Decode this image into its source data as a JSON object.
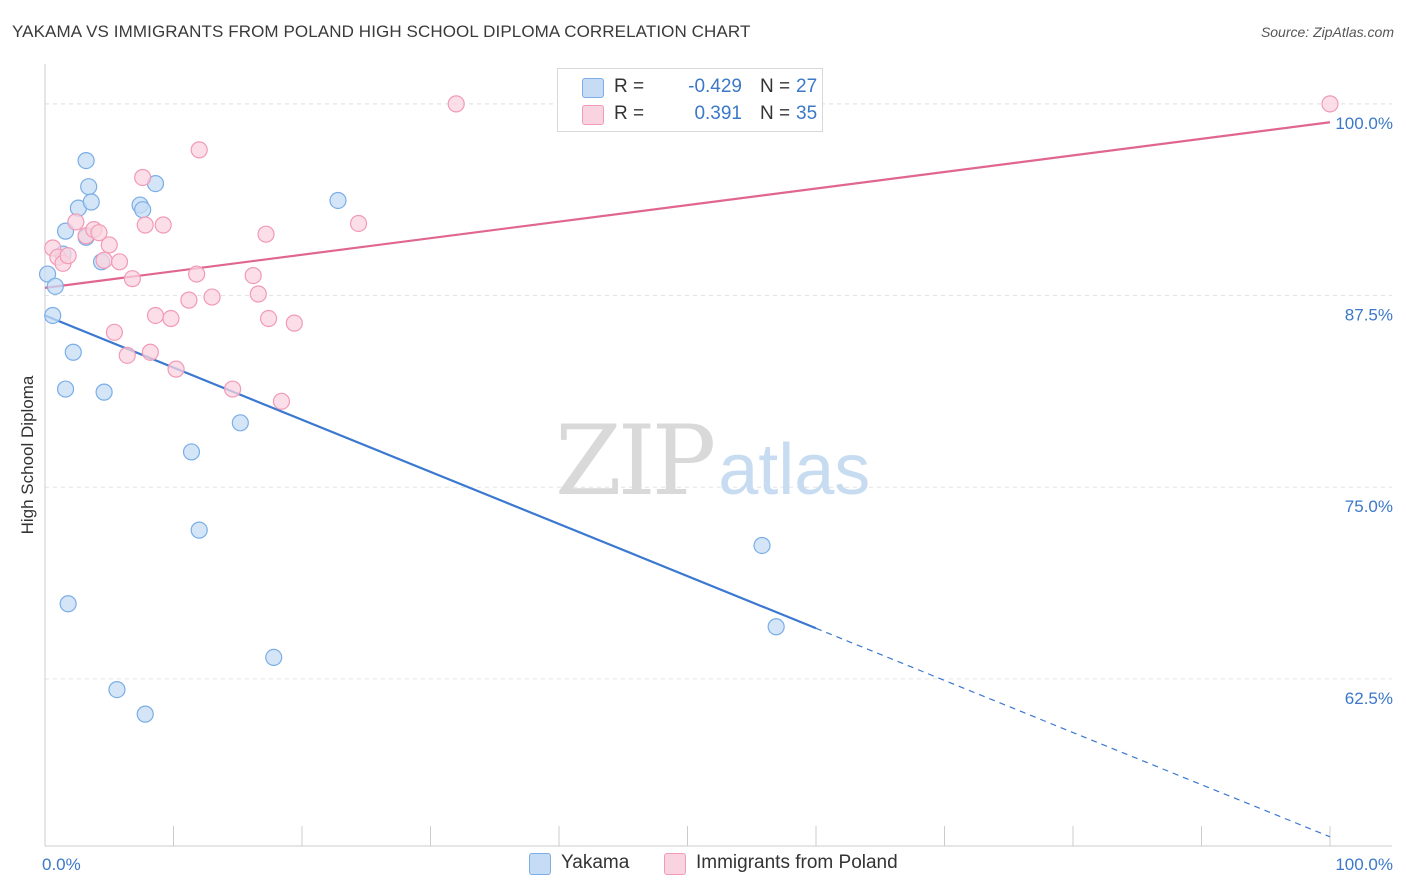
{
  "title": "YAKAMA VS IMMIGRANTS FROM POLAND HIGH SCHOOL DIPLOMA CORRELATION CHART",
  "source": "Source: ZipAtlas.com",
  "watermark": {
    "zip": "ZIP",
    "atlas": "atlas"
  },
  "legend": {
    "r_label": "R =",
    "n_label": "N =",
    "rows": [
      {
        "r": "-0.429",
        "n": "27"
      },
      {
        "r": "0.391",
        "n": "35"
      }
    ]
  },
  "chart_data": {
    "type": "scatter",
    "title": "YAKAMA VS IMMIGRANTS FROM POLAND HIGH SCHOOL DIPLOMA CORRELATION CHART",
    "xlabel": "",
    "ylabel": "High School Diploma",
    "xlim": [
      0,
      100
    ],
    "ylim": [
      51.6,
      102.6
    ],
    "x_tick_labels": [
      "0.0%",
      "100.0%"
    ],
    "y_ticks": [
      {
        "value": 100.0,
        "label": "100.0%"
      },
      {
        "value": 87.5,
        "label": "87.5%"
      },
      {
        "value": 75.0,
        "label": "75.0%"
      },
      {
        "value": 62.5,
        "label": "62.5%"
      }
    ],
    "grid": true,
    "legend_position": "top-center",
    "series": [
      {
        "name": "Yakama",
        "color": "#7aaee6",
        "fill": "#c6dcf5",
        "line_color": "#3b78d0",
        "trend": {
          "x0": 0,
          "y0": 86.2,
          "x1": 60,
          "y1": 65.8,
          "dashed_to_x": 100,
          "dashed_to_y": 52.2
        },
        "points": [
          [
            0.2,
            88.9
          ],
          [
            0.8,
            88.1
          ],
          [
            0.6,
            86.2
          ],
          [
            1.4,
            90.2
          ],
          [
            1.6,
            91.7
          ],
          [
            2.6,
            93.2
          ],
          [
            3.2,
            96.3
          ],
          [
            3.2,
            91.3
          ],
          [
            3.4,
            94.6
          ],
          [
            3.6,
            93.6
          ],
          [
            4.4,
            89.7
          ],
          [
            2.2,
            83.8
          ],
          [
            1.6,
            81.4
          ],
          [
            4.6,
            81.2
          ],
          [
            7.4,
            93.4
          ],
          [
            7.6,
            93.1
          ],
          [
            8.6,
            94.8
          ],
          [
            15.2,
            79.2
          ],
          [
            11.4,
            77.3
          ],
          [
            12.0,
            72.2
          ],
          [
            1.8,
            67.4
          ],
          [
            5.6,
            61.8
          ],
          [
            7.8,
            60.2
          ],
          [
            17.8,
            63.9
          ],
          [
            22.8,
            93.7
          ],
          [
            55.8,
            71.2
          ],
          [
            56.9,
            65.9
          ]
        ]
      },
      {
        "name": "Immigrants from Poland",
        "color": "#f29ab6",
        "fill": "#f9d3df",
        "line_color": "#e0668f",
        "trend": {
          "x0": 0,
          "y0": 88.0,
          "x1": 100,
          "y1": 98.8
        },
        "points": [
          [
            0.6,
            90.6
          ],
          [
            1.0,
            90.0
          ],
          [
            1.4,
            89.6
          ],
          [
            1.8,
            90.1
          ],
          [
            2.4,
            92.3
          ],
          [
            3.2,
            91.4
          ],
          [
            3.8,
            91.8
          ],
          [
            4.2,
            91.6
          ],
          [
            5.0,
            90.8
          ],
          [
            4.6,
            89.8
          ],
          [
            5.8,
            89.7
          ],
          [
            6.8,
            88.6
          ],
          [
            7.6,
            95.2
          ],
          [
            7.8,
            92.1
          ],
          [
            9.2,
            92.1
          ],
          [
            12.0,
            97.0
          ],
          [
            11.8,
            88.9
          ],
          [
            11.2,
            87.2
          ],
          [
            13.0,
            87.4
          ],
          [
            8.6,
            86.2
          ],
          [
            9.8,
            86.0
          ],
          [
            5.4,
            85.1
          ],
          [
            6.4,
            83.6
          ],
          [
            8.2,
            83.8
          ],
          [
            10.2,
            82.7
          ],
          [
            16.2,
            88.8
          ],
          [
            16.6,
            87.6
          ],
          [
            17.2,
            91.5
          ],
          [
            17.4,
            86.0
          ],
          [
            19.4,
            85.7
          ],
          [
            14.6,
            81.4
          ],
          [
            18.4,
            80.6
          ],
          [
            24.4,
            92.2
          ],
          [
            32.0,
            100.0
          ],
          [
            100.0,
            100.0
          ]
        ]
      }
    ]
  }
}
